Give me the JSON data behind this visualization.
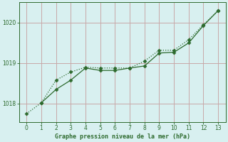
{
  "line1_x": [
    0,
    1,
    2,
    3,
    4,
    5,
    6,
    7,
    8,
    9,
    10,
    11,
    12,
    13
  ],
  "line1_y": [
    1017.75,
    1018.02,
    1018.58,
    1018.78,
    1018.9,
    1018.88,
    1018.88,
    1018.88,
    1019.05,
    1019.32,
    1019.32,
    1019.58,
    1019.95,
    1020.3
  ],
  "line2_x": [
    1,
    2,
    3,
    4,
    5,
    6,
    7,
    8,
    9,
    10,
    11,
    12,
    13
  ],
  "line2_y": [
    1018.02,
    1018.35,
    1018.58,
    1018.88,
    1018.82,
    1018.82,
    1018.88,
    1018.93,
    1019.25,
    1019.27,
    1019.5,
    1019.93,
    1020.3
  ],
  "line_color": "#2d6a2d",
  "bg_color": "#d8f0f0",
  "grid_color": "#c8a8a8",
  "xlabel": "Graphe pression niveau de la mer (hPa)",
  "yticks": [
    1018,
    1019,
    1020
  ],
  "xticks": [
    0,
    1,
    2,
    3,
    4,
    5,
    6,
    7,
    8,
    9,
    10,
    11,
    12,
    13
  ],
  "xlim": [
    -0.5,
    13.5
  ],
  "ylim": [
    1017.55,
    1020.5
  ]
}
